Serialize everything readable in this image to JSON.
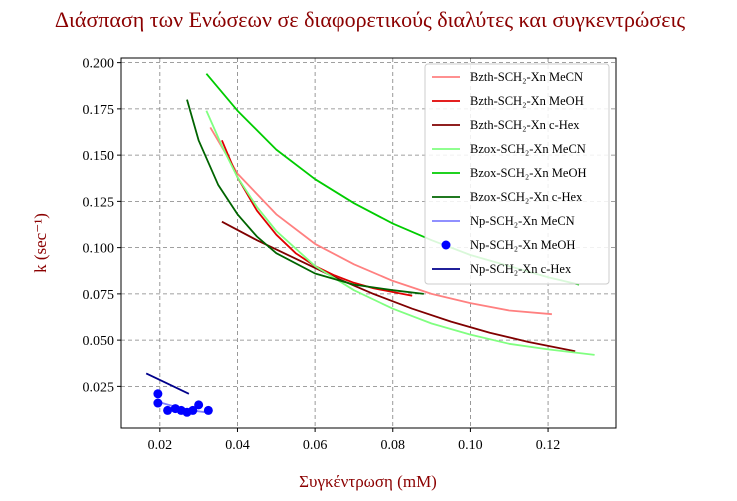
{
  "chart_data": {
    "type": "line",
    "title": "Διάσπαση των Ενώσεων σε διαφορετικούς διαλύτες και συγκεντρώσεις",
    "xlabel": "Συγκέντρωση (mM)",
    "ylabel": "k (sec⁻¹)",
    "xlim": [
      0.01,
      0.1375
    ],
    "ylim": [
      0.0025,
      0.2025
    ],
    "xticks": [
      "0.02",
      "0.04",
      "0.06",
      "0.08",
      "0.10",
      "0.12"
    ],
    "yticks": [
      "0.025",
      "0.050",
      "0.075",
      "0.100",
      "0.125",
      "0.150",
      "0.175",
      "0.200"
    ],
    "grid": true,
    "legend_position": "top-right",
    "series": [
      {
        "name": "Bzth-SCH₂-Xn MeCN",
        "style": "line",
        "color": "#ff8080",
        "x": [
          0.033,
          0.04,
          0.05,
          0.06,
          0.07,
          0.08,
          0.09,
          0.1,
          0.11,
          0.121
        ],
        "y": [
          0.165,
          0.14,
          0.118,
          0.102,
          0.091,
          0.082,
          0.075,
          0.07,
          0.066,
          0.064
        ]
      },
      {
        "name": "Bzth-SCH₂-Xn MeOH",
        "style": "line",
        "color": "#e00000",
        "x": [
          0.036,
          0.04,
          0.045,
          0.05,
          0.055,
          0.06,
          0.065,
          0.07,
          0.075,
          0.085
        ],
        "y": [
          0.158,
          0.138,
          0.12,
          0.107,
          0.097,
          0.09,
          0.085,
          0.081,
          0.078,
          0.074
        ]
      },
      {
        "name": "Bzth-SCH₂-Xn c-Hex",
        "style": "line",
        "color": "#800000",
        "x": [
          0.036,
          0.045,
          0.055,
          0.065,
          0.075,
          0.085,
          0.095,
          0.105,
          0.115,
          0.127
        ],
        "y": [
          0.114,
          0.104,
          0.094,
          0.084,
          0.075,
          0.067,
          0.06,
          0.054,
          0.049,
          0.044
        ]
      },
      {
        "name": "Bzox-SCH₂-Xn MeCN",
        "style": "line",
        "color": "#80ff80",
        "x": [
          0.032,
          0.036,
          0.04,
          0.045,
          0.05,
          0.06,
          0.07,
          0.08,
          0.09,
          0.1,
          0.11,
          0.12,
          0.132
        ],
        "y": [
          0.174,
          0.155,
          0.138,
          0.122,
          0.109,
          0.09,
          0.077,
          0.067,
          0.059,
          0.053,
          0.048,
          0.045,
          0.042
        ]
      },
      {
        "name": "Bzox-SCH₂-Xn MeOH",
        "style": "line",
        "color": "#00cc00",
        "x": [
          0.032,
          0.04,
          0.05,
          0.06,
          0.07,
          0.08,
          0.09,
          0.1,
          0.11,
          0.12,
          0.128
        ],
        "y": [
          0.194,
          0.174,
          0.153,
          0.137,
          0.124,
          0.113,
          0.104,
          0.096,
          0.09,
          0.084,
          0.08
        ]
      },
      {
        "name": "Bzox-SCH₂-Xn c-Hex",
        "style": "line",
        "color": "#006400",
        "x": [
          0.027,
          0.03,
          0.035,
          0.04,
          0.045,
          0.05,
          0.06,
          0.07,
          0.08,
          0.088
        ],
        "y": [
          0.18,
          0.158,
          0.134,
          0.118,
          0.106,
          0.097,
          0.086,
          0.08,
          0.077,
          0.075
        ]
      },
      {
        "name": "Np-SCH₂-Xn MeCN",
        "style": "line",
        "color": "#8080ff",
        "x": [
          0.019,
          0.024,
          0.028,
          0.032
        ],
        "y": [
          0.017,
          0.014,
          0.012,
          0.011
        ]
      },
      {
        "name": "Np-SCH₂-Xn MeOH",
        "style": "scatter",
        "color": "#0000ff",
        "x": [
          0.0195,
          0.0195,
          0.022,
          0.024,
          0.0255,
          0.027,
          0.0285,
          0.03,
          0.0325
        ],
        "y": [
          0.021,
          0.016,
          0.012,
          0.013,
          0.012,
          0.011,
          0.012,
          0.015,
          0.012
        ]
      },
      {
        "name": "Np-SCH₂-Xn c-Hex",
        "style": "line",
        "color": "#00008b",
        "x": [
          0.0165,
          0.0275
        ],
        "y": [
          0.032,
          0.021
        ]
      }
    ]
  }
}
